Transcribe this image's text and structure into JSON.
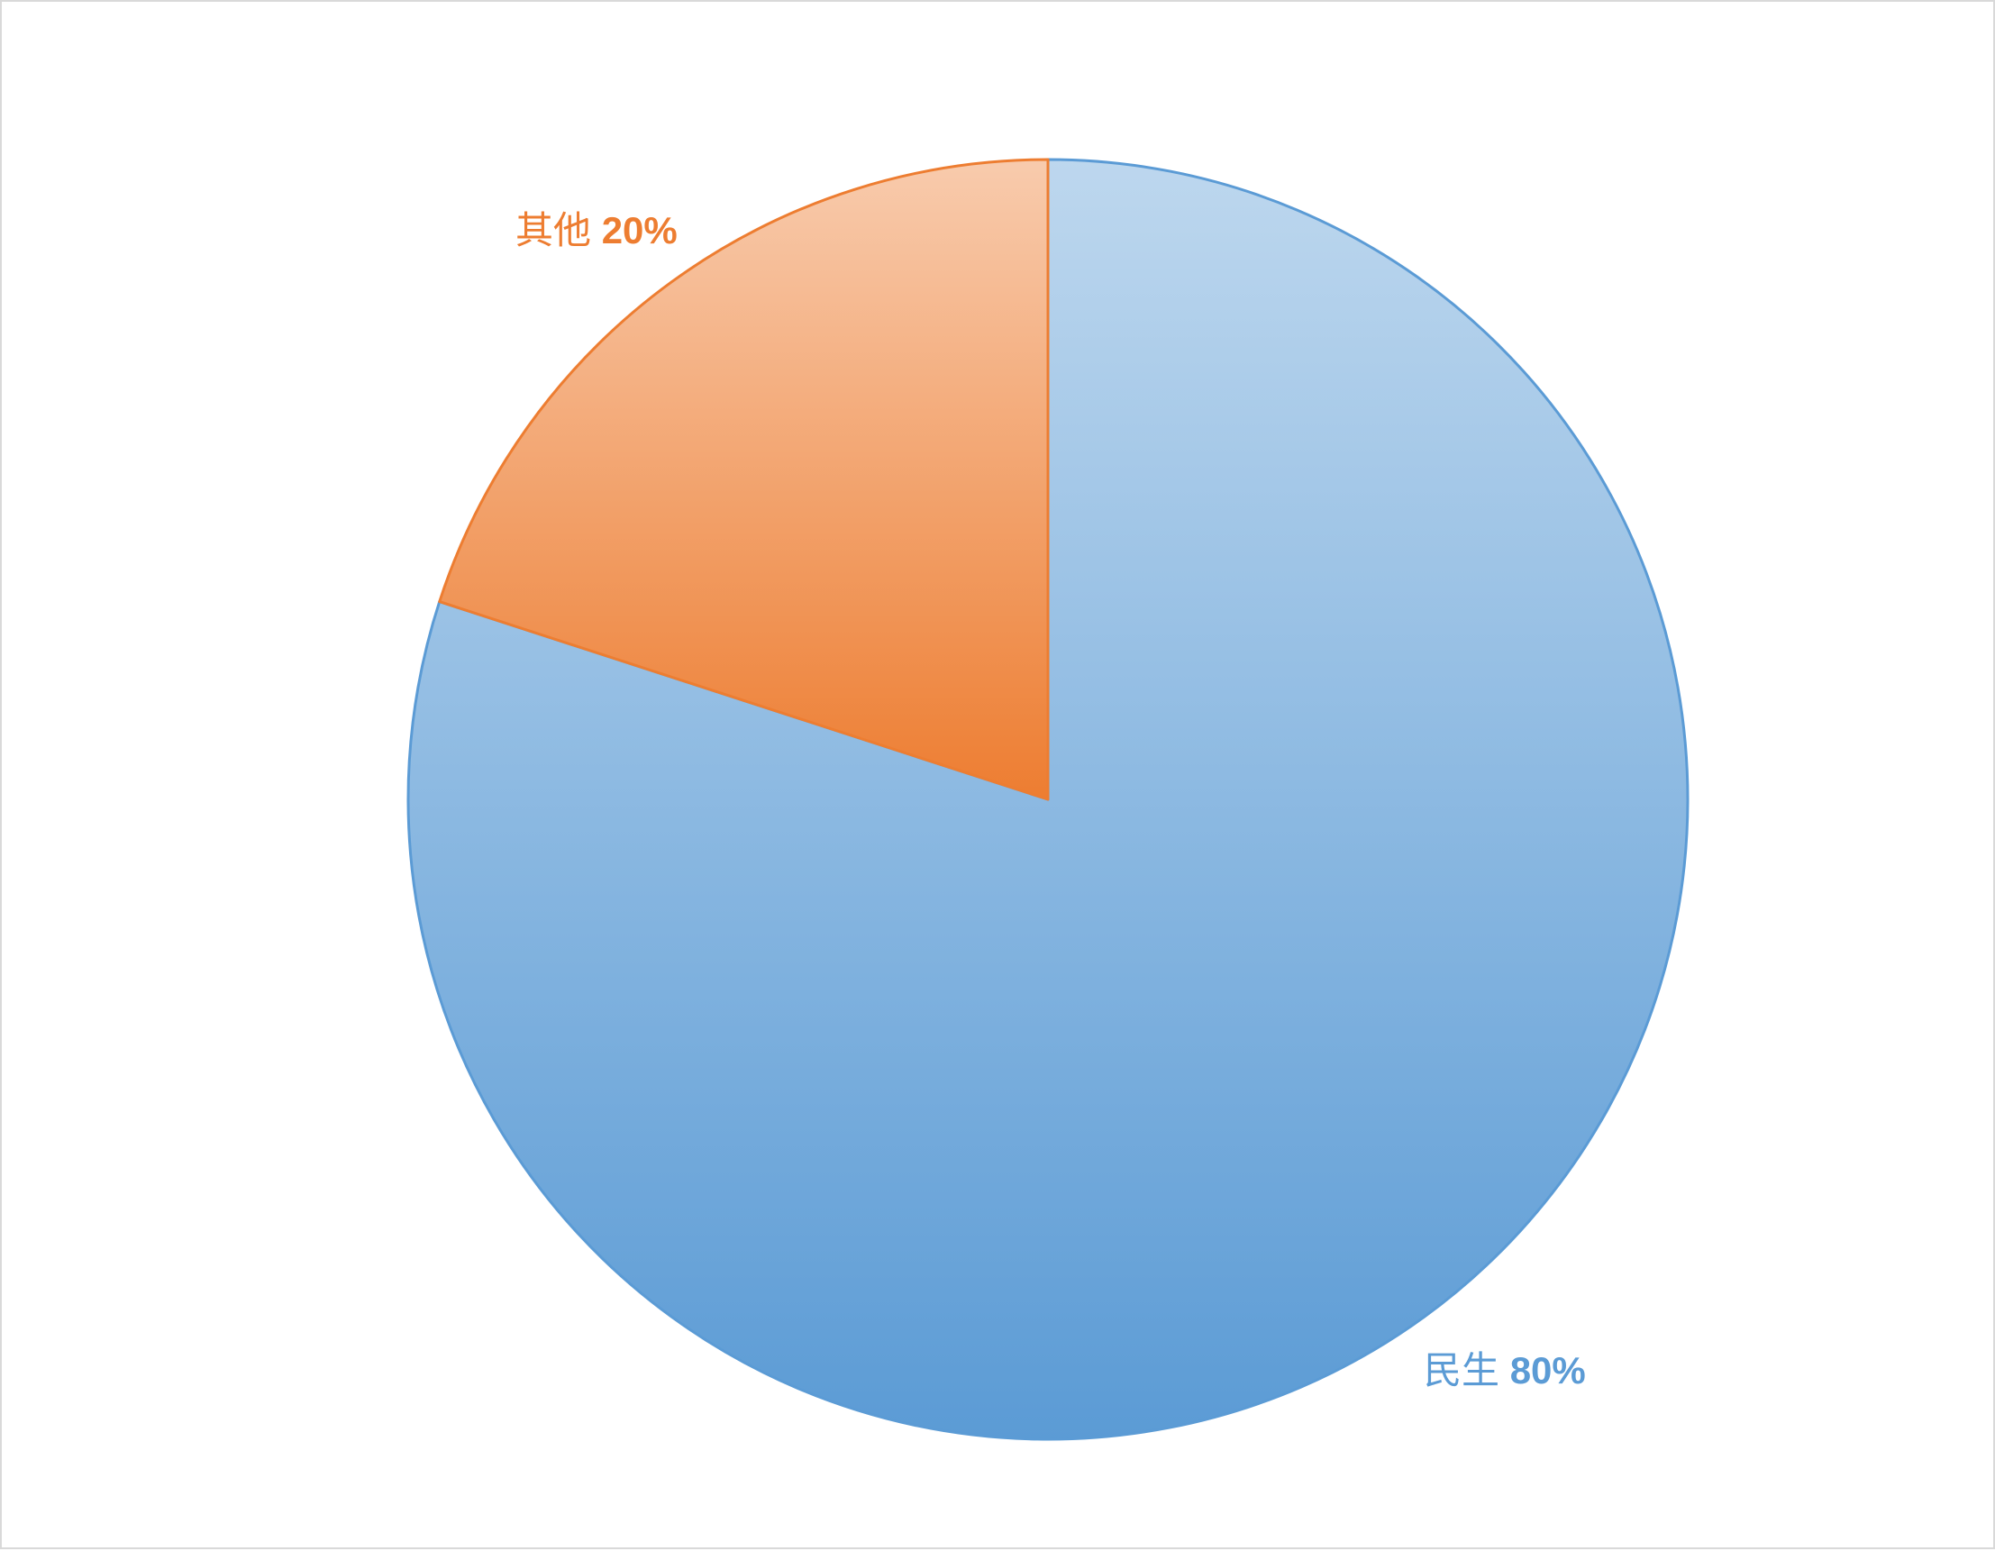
{
  "chart_data": {
    "type": "pie",
    "title": "",
    "start_angle_deg": 0,
    "direction": "counterclockwise",
    "slices": [
      {
        "label": "其他",
        "value": 20,
        "value_label": "20%",
        "color": "#ED7D31",
        "color_light": "#F8CBAD"
      },
      {
        "label": "民生",
        "value": 80,
        "value_label": "80%",
        "color": "#5B9BD5",
        "color_light": "#BDD7EE"
      }
    ],
    "legend": "none",
    "data_labels": "outside-end"
  }
}
